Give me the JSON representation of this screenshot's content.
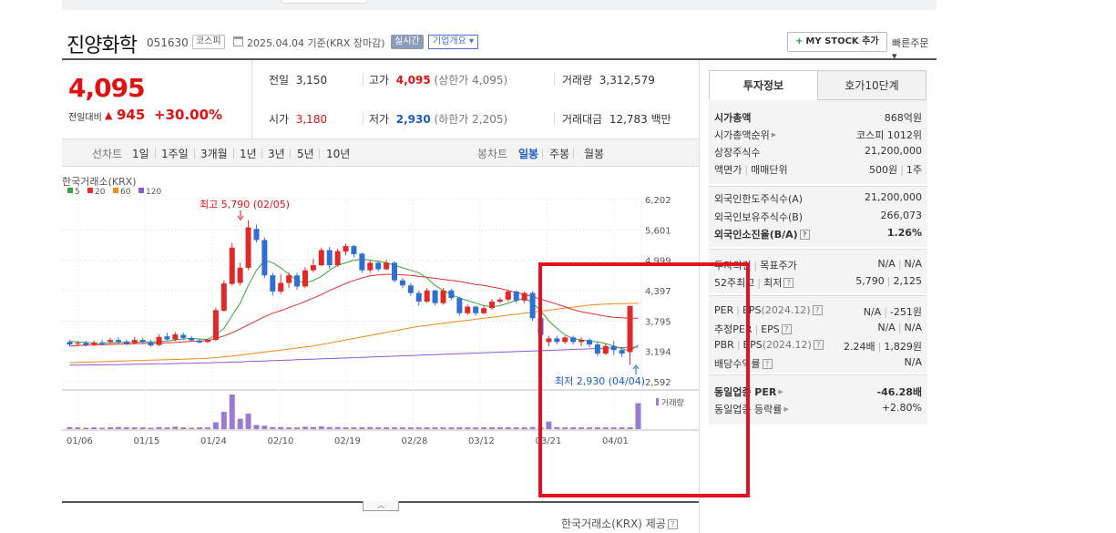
{
  "header": {
    "company_name": "진양화학",
    "code": "051630",
    "market_tag": "코스피",
    "date_text": "2025.04.04  기준(KRX 장마감)",
    "realtime_label": "실시간",
    "overview_label": "기업개요 ▾",
    "mystock_label": "MY STOCK 추가",
    "mystock_plus": "+",
    "quick_order": "빠른주문 ▾"
  },
  "price": {
    "current": "4,095",
    "change_label": "전일대비",
    "change_arrow": "▲",
    "change_value": "945",
    "change_pct": "+30.00%"
  },
  "stats": {
    "prev_close_label": "전일",
    "prev_close": "3,150",
    "high_label": "고가",
    "high": "4,095",
    "upper_limit": "(상한가 4,095)",
    "volume_label": "거래량",
    "volume": "3,312,579",
    "open_label": "시가",
    "open": "3,180",
    "low_label": "저가",
    "low": "2,930",
    "lower_limit": "(하한가 2,205)",
    "amount_label": "거래대금",
    "amount": "12,783",
    "amount_unit": "백만"
  },
  "periods": {
    "line_label": "선차트",
    "items": [
      "1일",
      "1주일",
      "3개월",
      "1년",
      "3년",
      "5년",
      "10년"
    ],
    "candle_label": "봉차트",
    "candle_items": [
      "일봉",
      "주봉",
      "월봉"
    ],
    "active_candle": "일봉"
  },
  "chart": {
    "source_label": "한국거래소(KRX)",
    "ma_legend": [
      {
        "label": "5",
        "color": "#3aa33a"
      },
      {
        "label": "20",
        "color": "#e03030"
      },
      {
        "label": "60",
        "color": "#f08a1c"
      },
      {
        "label": "120",
        "color": "#8e5bd1"
      }
    ],
    "max_annotation": "최고 5,790 (02/05)",
    "min_annotation": "최저 2,930 (04/04)",
    "volume_label": "거래량",
    "y_ticks": [
      "6,202",
      "5,601",
      "4,999",
      "4,397",
      "3,795",
      "3,194",
      "2,592"
    ],
    "x_ticks": [
      "01/06",
      "01/15",
      "01/24",
      "02/10",
      "02/19",
      "02/28",
      "03/12",
      "03/21",
      "04/01"
    ],
    "provider": "한국거래소(KRX) 제공",
    "collapse_glyph": "︿",
    "help_glyph": "?"
  },
  "chart_data": {
    "type": "candlestick",
    "y_range": [
      2592,
      6202
    ],
    "candles": [
      {
        "o": 3380,
        "c": 3330,
        "h": 3420,
        "l": 3290
      },
      {
        "o": 3340,
        "c": 3360,
        "h": 3400,
        "l": 3300
      },
      {
        "o": 3360,
        "c": 3320,
        "h": 3400,
        "l": 3290
      },
      {
        "o": 3330,
        "c": 3370,
        "h": 3410,
        "l": 3300
      },
      {
        "o": 3370,
        "c": 3340,
        "h": 3420,
        "l": 3310
      },
      {
        "o": 3380,
        "c": 3420,
        "h": 3460,
        "l": 3350
      },
      {
        "o": 3420,
        "c": 3380,
        "h": 3470,
        "l": 3350
      },
      {
        "o": 3390,
        "c": 3350,
        "h": 3430,
        "l": 3320
      },
      {
        "o": 3360,
        "c": 3420,
        "h": 3480,
        "l": 3330
      },
      {
        "o": 3420,
        "c": 3380,
        "h": 3460,
        "l": 3340
      },
      {
        "o": 3370,
        "c": 3310,
        "h": 3420,
        "l": 3290
      },
      {
        "o": 3320,
        "c": 3480,
        "h": 3530,
        "l": 3300
      },
      {
        "o": 3490,
        "c": 3430,
        "h": 3560,
        "l": 3410
      },
      {
        "o": 3430,
        "c": 3530,
        "h": 3580,
        "l": 3400
      },
      {
        "o": 3520,
        "c": 3460,
        "h": 3570,
        "l": 3420
      },
      {
        "o": 3460,
        "c": 3410,
        "h": 3500,
        "l": 3380
      },
      {
        "o": 3410,
        "c": 3370,
        "h": 3450,
        "l": 3350
      },
      {
        "o": 3380,
        "c": 3420,
        "h": 3450,
        "l": 3360
      },
      {
        "o": 3420,
        "c": 4010,
        "h": 4060,
        "l": 3400
      },
      {
        "o": 4000,
        "c": 4540,
        "h": 4600,
        "l": 3980
      },
      {
        "o": 4530,
        "c": 5250,
        "h": 5340,
        "l": 4500
      },
      {
        "o": 4550,
        "c": 4850,
        "h": 4950,
        "l": 4500
      },
      {
        "o": 4850,
        "c": 5650,
        "h": 5790,
        "l": 4800
      },
      {
        "o": 5620,
        "c": 5400,
        "h": 5700,
        "l": 5350
      },
      {
        "o": 5400,
        "c": 4700,
        "h": 5450,
        "l": 4650
      },
      {
        "o": 4700,
        "c": 4380,
        "h": 4750,
        "l": 4300
      },
      {
        "o": 4380,
        "c": 4550,
        "h": 4720,
        "l": 4330
      },
      {
        "o": 4550,
        "c": 4700,
        "h": 4760,
        "l": 4450
      },
      {
        "o": 4700,
        "c": 4480,
        "h": 4750,
        "l": 4420
      },
      {
        "o": 4480,
        "c": 4800,
        "h": 4860,
        "l": 4450
      },
      {
        "o": 4800,
        "c": 4900,
        "h": 5030,
        "l": 4760
      },
      {
        "o": 4900,
        "c": 5200,
        "h": 5250,
        "l": 4880
      },
      {
        "o": 5200,
        "c": 4900,
        "h": 5260,
        "l": 4830
      },
      {
        "o": 4900,
        "c": 5180,
        "h": 5230,
        "l": 4870
      },
      {
        "o": 5170,
        "c": 5280,
        "h": 5330,
        "l": 5100
      },
      {
        "o": 5280,
        "c": 5120,
        "h": 5300,
        "l": 5060
      },
      {
        "o": 5130,
        "c": 4800,
        "h": 5150,
        "l": 4750
      },
      {
        "o": 4800,
        "c": 4950,
        "h": 5000,
        "l": 4750
      },
      {
        "o": 4950,
        "c": 4820,
        "h": 4990,
        "l": 4780
      },
      {
        "o": 4820,
        "c": 4950,
        "h": 5010,
        "l": 4800
      },
      {
        "o": 4950,
        "c": 4600,
        "h": 4980,
        "l": 4560
      },
      {
        "o": 4600,
        "c": 4500,
        "h": 4650,
        "l": 4450
      },
      {
        "o": 4500,
        "c": 4350,
        "h": 4550,
        "l": 4300
      },
      {
        "o": 4350,
        "c": 4180,
        "h": 4400,
        "l": 4100
      },
      {
        "o": 4180,
        "c": 4400,
        "h": 4450,
        "l": 4150
      },
      {
        "o": 4400,
        "c": 4150,
        "h": 4420,
        "l": 4100
      },
      {
        "o": 4150,
        "c": 4400,
        "h": 4450,
        "l": 4120
      },
      {
        "o": 4400,
        "c": 4250,
        "h": 4430,
        "l": 4210
      },
      {
        "o": 4250,
        "c": 3950,
        "h": 4280,
        "l": 3900
      },
      {
        "o": 3950,
        "c": 4080,
        "h": 4120,
        "l": 3920
      },
      {
        "o": 4080,
        "c": 3950,
        "h": 4100,
        "l": 3900
      },
      {
        "o": 3950,
        "c": 4050,
        "h": 4100,
        "l": 3930
      },
      {
        "o": 4050,
        "c": 4180,
        "h": 4230,
        "l": 4020
      },
      {
        "o": 4180,
        "c": 4220,
        "h": 4260,
        "l": 4150
      },
      {
        "o": 4220,
        "c": 4380,
        "h": 4420,
        "l": 4180
      },
      {
        "o": 4380,
        "c": 4200,
        "h": 4400,
        "l": 4150
      },
      {
        "o": 4200,
        "c": 4350,
        "h": 4380,
        "l": 4150
      },
      {
        "o": 4350,
        "c": 3850,
        "h": 4380,
        "l": 3800
      },
      {
        "o": 3850,
        "c": 3520,
        "h": 3880,
        "l": 3380
      },
      {
        "o": 3380,
        "c": 3450,
        "h": 3500,
        "l": 3300
      },
      {
        "o": 3450,
        "c": 3380,
        "h": 3500,
        "l": 3330
      },
      {
        "o": 3380,
        "c": 3470,
        "h": 3500,
        "l": 3340
      },
      {
        "o": 3470,
        "c": 3380,
        "h": 3500,
        "l": 3330
      },
      {
        "o": 3380,
        "c": 3420,
        "h": 3470,
        "l": 3300
      },
      {
        "o": 3420,
        "c": 3330,
        "h": 3450,
        "l": 3280
      },
      {
        "o": 3330,
        "c": 3150,
        "h": 3380,
        "l": 3100
      },
      {
        "o": 3150,
        "c": 3300,
        "h": 3350,
        "l": 3120
      },
      {
        "o": 3300,
        "c": 3220,
        "h": 3400,
        "l": 3120
      },
      {
        "o": 3220,
        "c": 3150,
        "h": 3280,
        "l": 3080
      },
      {
        "o": 3180,
        "c": 4095,
        "h": 4095,
        "l": 2930
      }
    ],
    "ma5": [
      3390,
      3380,
      3370,
      3360,
      3350,
      3360,
      3370,
      3370,
      3375,
      3385,
      3380,
      3390,
      3400,
      3420,
      3440,
      3450,
      3440,
      3430,
      3520,
      3650,
      3900,
      4150,
      4500,
      4800,
      5000,
      4950,
      4850,
      4720,
      4600,
      4540,
      4600,
      4680,
      4800,
      4900,
      4950,
      5000,
      5020,
      5000,
      4980,
      4950,
      4900,
      4850,
      4800,
      4750,
      4650,
      4500,
      4400,
      4320,
      4250,
      4200,
      4150,
      4100,
      4080,
      4100,
      4150,
      4200,
      4250,
      4150,
      4000,
      3800,
      3650,
      3520,
      3450,
      3420,
      3400,
      3380,
      3350,
      3300,
      3250,
      3200,
      3320
    ],
    "ma20": [
      3300,
      3310,
      3315,
      3320,
      3325,
      3330,
      3335,
      3340,
      3345,
      3350,
      3355,
      3360,
      3365,
      3370,
      3380,
      3390,
      3400,
      3410,
      3450,
      3500,
      3560,
      3640,
      3720,
      3800,
      3880,
      3950,
      4000,
      4060,
      4120,
      4180,
      4250,
      4320,
      4400,
      4470,
      4540,
      4600,
      4650,
      4690,
      4710,
      4720,
      4720,
      4710,
      4700,
      4680,
      4660,
      4640,
      4620,
      4600,
      4580,
      4550,
      4520,
      4500,
      4470,
      4440,
      4400,
      4360,
      4320,
      4280,
      4230,
      4180,
      4130,
      4080,
      4020,
      3980,
      3950,
      3920,
      3890,
      3870,
      3860,
      3850,
      3850
    ],
    "ma60": [
      2970,
      2975,
      2980,
      2985,
      2990,
      2995,
      3000,
      3005,
      3010,
      3015,
      3020,
      3025,
      3030,
      3035,
      3040,
      3045,
      3050,
      3060,
      3070,
      3085,
      3100,
      3120,
      3140,
      3160,
      3180,
      3200,
      3220,
      3240,
      3260,
      3280,
      3300,
      3330,
      3360,
      3390,
      3420,
      3450,
      3480,
      3510,
      3540,
      3570,
      3600,
      3630,
      3660,
      3690,
      3710,
      3730,
      3750,
      3770,
      3790,
      3810,
      3830,
      3850,
      3870,
      3890,
      3910,
      3930,
      3950,
      3970,
      3990,
      4010,
      4030,
      4050,
      4070,
      4090,
      4110,
      4120,
      4130,
      4135,
      4140,
      4145,
      4150
    ],
    "ma120": [
      2920,
      2922,
      2924,
      2926,
      2928,
      2930,
      2932,
      2935,
      2938,
      2941,
      2944,
      2947,
      2950,
      2953,
      2956,
      2960,
      2964,
      2968,
      2972,
      2976,
      2980,
      2986,
      2992,
      2998,
      3004,
      3010,
      3016,
      3022,
      3028,
      3034,
      3040,
      3046,
      3052,
      3058,
      3064,
      3070,
      3076,
      3082,
      3088,
      3094,
      3100,
      3106,
      3112,
      3118,
      3124,
      3130,
      3136,
      3142,
      3148,
      3154,
      3160,
      3166,
      3172,
      3178,
      3184,
      3190,
      3196,
      3202,
      3208,
      3214,
      3220,
      3226,
      3232,
      3238,
      3244,
      3250,
      3256,
      3262,
      3268,
      3274,
      3280
    ],
    "volume": [
      0.06,
      0.05,
      0.04,
      0.05,
      0.04,
      0.05,
      0.06,
      0.05,
      0.05,
      0.05,
      0.04,
      0.06,
      0.05,
      0.07,
      0.05,
      0.04,
      0.05,
      0.05,
      0.2,
      0.5,
      1.0,
      0.3,
      0.45,
      0.12,
      0.1,
      0.06,
      0.06,
      0.05,
      0.05,
      0.07,
      0.06,
      0.08,
      0.06,
      0.06,
      0.05,
      0.05,
      0.05,
      0.06,
      0.05,
      0.05,
      0.05,
      0.05,
      0.05,
      0.05,
      0.05,
      0.05,
      0.05,
      0.05,
      0.05,
      0.05,
      0.05,
      0.05,
      0.05,
      0.05,
      0.05,
      0.05,
      0.05,
      0.06,
      0.05,
      0.22,
      0.06,
      0.05,
      0.05,
      0.05,
      0.05,
      0.05,
      0.05,
      0.05,
      0.05,
      0.05,
      0.75
    ]
  },
  "invest": {
    "tab_active": "투자정보",
    "tab_inactive": "호가10단계",
    "market_cap_label": "시가총액",
    "market_cap": "868억원",
    "rank_label": "시가총액순위",
    "rank": "코스피 1012위",
    "shares_label": "상장주식수",
    "shares": "21,200,000",
    "par_label": "액면가",
    "unit_label": "매매단위",
    "par": "500원",
    "unit": "1주",
    "foreign_limit_label": "외국인한도주식수(A)",
    "foreign_limit": "21,200,000",
    "foreign_own_label": "외국인보유주식수(B)",
    "foreign_own": "266,073",
    "foreign_ratio_label": "외국인소진율(B/A)",
    "foreign_ratio": "1.26%",
    "opinion_label": "투자의견",
    "target_label": "목표주가",
    "opinion": "N/A",
    "target": "N/A",
    "w52_label": "52주최고",
    "w52_low_label": "최저",
    "w52_high": "5,790",
    "w52_low": "2,125",
    "per_label": "PER",
    "eps_label": "EPS",
    "eps_period": "(2024.12)",
    "per": "N/A",
    "eps": "-251원",
    "est_per_label": "추정PER",
    "est_eps_label": "EPS",
    "est_per": "N/A",
    "est_eps": "N/A",
    "pbr_label": "PBR",
    "bps_label": "BPS",
    "bps_period": "(2024.12)",
    "pbr": "2.24배",
    "bps": "1,829원",
    "div_label": "배당수익률",
    "div": "N/A",
    "sector_per_label": "동일업종 PER",
    "sector_per": "-46.28배",
    "sector_chg_label": "동일업종 등락률",
    "sector_chg": "+2.80%"
  }
}
